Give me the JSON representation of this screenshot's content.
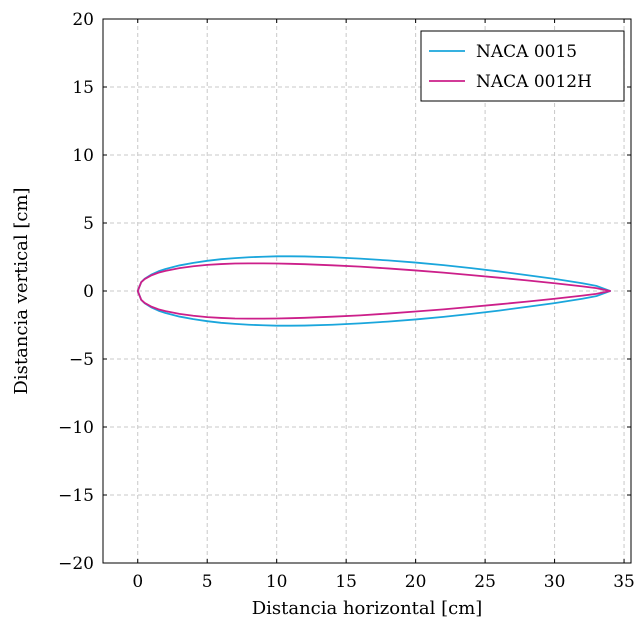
{
  "chart_data": {
    "type": "line",
    "title": "",
    "xlabel": "Distancia horizontal [cm]",
    "ylabel": "Distancia vertical [cm]",
    "xlim": [
      -2.5,
      35.5
    ],
    "ylim": [
      -20,
      20
    ],
    "xticks": [
      0,
      5,
      10,
      15,
      20,
      25,
      30,
      35
    ],
    "yticks": [
      -20,
      -15,
      -10,
      -5,
      0,
      5,
      10,
      15,
      20
    ],
    "xtick_labels": [
      "0",
      "5",
      "10",
      "15",
      "20",
      "25",
      "30",
      "35"
    ],
    "ytick_labels": [
      "−20",
      "−15",
      "−10",
      "−5",
      "0",
      "5",
      "10",
      "15",
      "20"
    ],
    "grid": true,
    "legend_position": "top-right",
    "series": [
      {
        "name": "NACA 0015",
        "color": "#1aa6dc",
        "x": [
          0,
          0.25,
          0.5,
          1,
          1.5,
          2,
          3,
          4,
          5,
          6,
          7,
          8,
          9,
          10,
          11,
          12,
          14,
          16,
          18,
          20,
          22,
          24,
          26,
          28,
          30,
          32,
          33,
          34
        ],
        "y": [
          0,
          0.65,
          0.9,
          1.22,
          1.45,
          1.62,
          1.88,
          2.07,
          2.22,
          2.34,
          2.42,
          2.48,
          2.52,
          2.55,
          2.55,
          2.54,
          2.48,
          2.38,
          2.25,
          2.09,
          1.9,
          1.68,
          1.44,
          1.17,
          0.89,
          0.57,
          0.38,
          0.0
        ]
      },
      {
        "name": "NACA 0012H",
        "color": "#cc1f8a",
        "x": [
          0,
          0.25,
          0.5,
          1,
          1.5,
          2,
          3,
          4,
          5,
          6,
          7,
          8,
          9,
          10,
          11,
          12,
          14,
          16,
          18,
          20,
          22,
          24,
          26,
          28,
          30,
          32,
          33,
          34
        ],
        "y": [
          0,
          0.65,
          0.88,
          1.16,
          1.35,
          1.48,
          1.68,
          1.82,
          1.92,
          1.98,
          2.02,
          2.03,
          2.03,
          2.02,
          2.0,
          1.97,
          1.89,
          1.79,
          1.66,
          1.51,
          1.35,
          1.17,
          0.98,
          0.78,
          0.57,
          0.34,
          0.21,
          0.0
        ]
      }
    ]
  }
}
